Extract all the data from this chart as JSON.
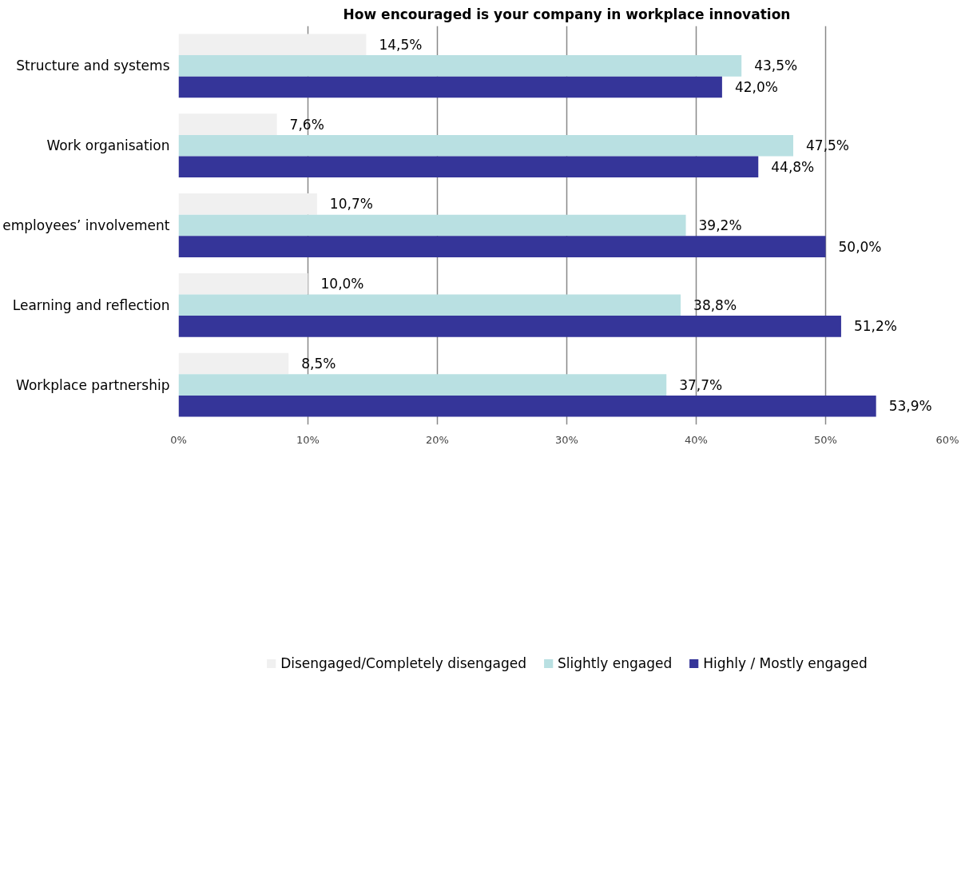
{
  "chart_data": {
    "type": "bar",
    "orientation": "horizontal",
    "title": "How encouraged is your company in workplace innovation",
    "categories": [
      "Structure and systems",
      "Work organisation",
      "employees’ involvement",
      "Learning and reflection",
      "Workplace partnership"
    ],
    "series": [
      {
        "name": "Disengaged/Completely disengaged",
        "color": "#f0f0f0",
        "values": [
          14.5,
          7.6,
          10.7,
          10.0,
          8.5
        ],
        "value_labels": [
          "14,5%",
          "7,6%",
          "10,7%",
          "10,0%",
          "8,5%"
        ]
      },
      {
        "name": "Slightly engaged",
        "color": "#b9e0e2",
        "values": [
          43.5,
          47.5,
          39.2,
          38.8,
          37.7
        ],
        "value_labels": [
          "43,5%",
          "47,5%",
          "39,2%",
          "38,8%",
          "37,7%"
        ]
      },
      {
        "name": "Highly / Mostly engaged",
        "color": "#353599",
        "values": [
          42.0,
          44.8,
          50.0,
          51.2,
          53.9
        ],
        "value_labels": [
          "42,0%",
          "44,8%",
          "50,0%",
          "51,2%",
          "53,9%"
        ]
      }
    ],
    "xlim": [
      0,
      60
    ],
    "xticks": [
      {
        "value": 0,
        "label": "0%"
      },
      {
        "value": 10,
        "label": "10%"
      },
      {
        "value": 20,
        "label": "20%"
      },
      {
        "value": 30,
        "label": "30%"
      },
      {
        "value": 40,
        "label": "40%"
      },
      {
        "value": 50,
        "label": "50%"
      },
      {
        "value": 60,
        "label": "60%"
      }
    ],
    "grid": "x",
    "legend": "bottom"
  }
}
